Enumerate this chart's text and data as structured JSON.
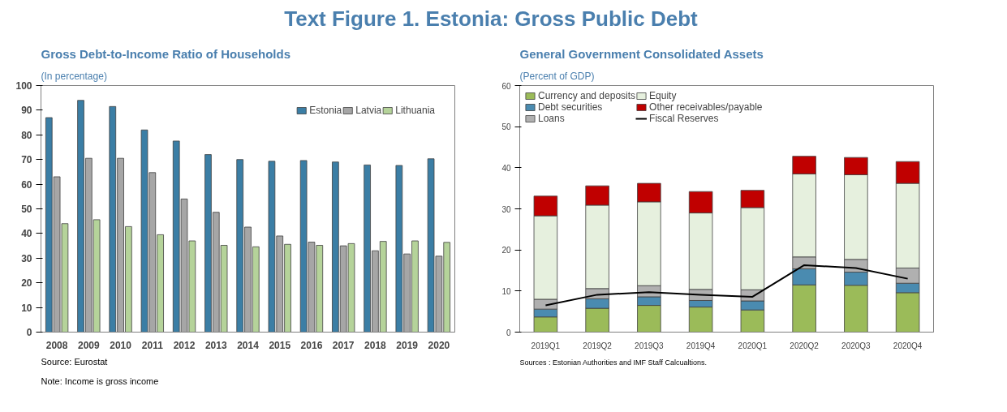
{
  "chart_data": [
    {
      "type": "other",
      "title": "Text Figure 1. Estonia: Gross Public Debt"
    },
    {
      "type": "bar",
      "title": "Gross Debt-to-Income Ratio of Households",
      "subtitle": "(In percentage)",
      "categories": [
        "2008",
        "2009",
        "2010",
        "2011",
        "2012",
        "2013",
        "2014",
        "2015",
        "2016",
        "2017",
        "2018",
        "2019",
        "2020"
      ],
      "series": [
        {
          "name": "Estonia",
          "color": "#3b7ea5",
          "values": [
            87,
            94,
            91.5,
            82,
            77.5,
            72,
            70,
            69.3,
            69.6,
            69,
            67.8,
            67.6,
            70.3
          ]
        },
        {
          "name": "Latvia",
          "color": "#a6a6a6",
          "values": [
            63,
            70.5,
            70.5,
            64.7,
            54,
            48.6,
            42.6,
            39,
            36.5,
            35,
            33,
            31.7,
            30.8
          ]
        },
        {
          "name": "Lithuania",
          "color": "#b5d39a",
          "values": [
            44,
            45.6,
            42.8,
            39.5,
            37,
            35.2,
            34.6,
            35.6,
            35.2,
            35.9,
            36.8,
            37,
            36.4
          ]
        }
      ],
      "ylim": [
        0,
        100
      ],
      "yticks": [
        0,
        10,
        20,
        30,
        40,
        50,
        60,
        70,
        80,
        90,
        100
      ],
      "grid": false,
      "legend": "top right",
      "annotations": [
        "Source: Eurostat",
        "Note: Income is gross income"
      ]
    },
    {
      "type": "bar",
      "stacked": true,
      "title": "General Government Consolidated Assets",
      "subtitle": "(Percent of GDP)",
      "categories": [
        "2019Q1",
        "2019Q2",
        "2019Q3",
        "2019Q4",
        "2020Q1",
        "2020Q2",
        "2020Q3",
        "2020Q4"
      ],
      "series": [
        {
          "name": "Currency and deposits",
          "color": "#9bbb59",
          "values": [
            3.7,
            5.8,
            6.5,
            6.1,
            5.4,
            11.5,
            11.4,
            9.6
          ]
        },
        {
          "name": "Debt securities",
          "color": "#4a8bb0",
          "values": [
            1.9,
            2.3,
            2.1,
            1.6,
            2.2,
            3.9,
            3.2,
            2.3
          ]
        },
        {
          "name": "Loans",
          "color": "#b0b0b0",
          "values": [
            2.4,
            2.5,
            2.7,
            2.7,
            2.7,
            2.9,
            3.1,
            3.7
          ]
        },
        {
          "name": "Equity",
          "color": "#e6f0de",
          "values": [
            20.3,
            20.3,
            20.4,
            18.6,
            20.0,
            20.2,
            20.6,
            20.6
          ]
        },
        {
          "name": "Other receivables/payable",
          "color": "#c00000",
          "values": [
            4.8,
            4.7,
            4.5,
            5.2,
            4.2,
            4.3,
            4.2,
            5.3
          ]
        },
        {
          "name": "Fiscal Reserves",
          "type": "line",
          "color": "#000000",
          "values": [
            6.5,
            9.1,
            9.7,
            9.1,
            8.6,
            16.3,
            15.6,
            13.0
          ]
        }
      ],
      "ylim": [
        0,
        60
      ],
      "yticks": [
        0,
        10,
        20,
        30,
        40,
        50,
        60
      ],
      "grid": false,
      "legend": "top",
      "annotations": [
        "Sources : Estonian Authorities and IMF Staff Calcualtions."
      ]
    }
  ]
}
